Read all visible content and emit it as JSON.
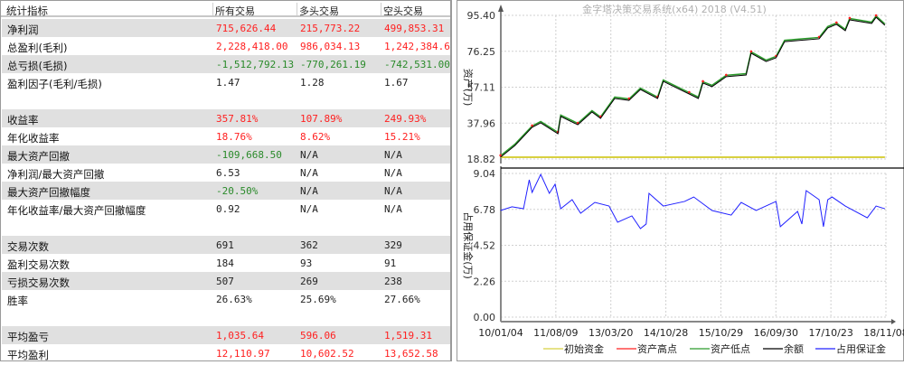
{
  "table": {
    "headers": [
      "统计指标",
      "所有交易",
      "多头交易",
      "空头交易"
    ],
    "rows": [
      {
        "label": "净利润",
        "values": [
          "715,626.44",
          "215,773.22",
          "499,853.31"
        ],
        "color": "red",
        "shade": true
      },
      {
        "label": "总盈利(毛利)",
        "values": [
          "2,228,418.00",
          "986,034.13",
          "1,242,384.63"
        ],
        "color": "red",
        "shade": false
      },
      {
        "label": "总亏损(毛损)",
        "values": [
          "-1,512,792.13",
          "-770,261.19",
          "-742,531.00"
        ],
        "color": "green",
        "shade": true
      },
      {
        "label": "盈利因子(毛利/毛损)",
        "values": [
          "1.47",
          "1.28",
          "1.67"
        ],
        "color": "black",
        "shade": false
      },
      {
        "label": "",
        "values": [
          "",
          "",
          ""
        ],
        "color": "black",
        "shade": false
      },
      {
        "label": "收益率",
        "values": [
          "357.81%",
          "107.89%",
          "249.93%"
        ],
        "color": "red",
        "shade": true
      },
      {
        "label": "年化收益率",
        "values": [
          "18.76%",
          "8.62%",
          "15.21%"
        ],
        "color": "red",
        "shade": false
      },
      {
        "label": "最大资产回撤",
        "values": [
          "-109,668.50",
          "N/A",
          "N/A"
        ],
        "color": "green",
        "shade": true
      },
      {
        "label": "净利润/最大资产回撤",
        "values": [
          "6.53",
          "N/A",
          "N/A"
        ],
        "color": "black",
        "shade": false
      },
      {
        "label": "最大资产回撤幅度",
        "values": [
          "-20.50%",
          "N/A",
          "N/A"
        ],
        "color": "green",
        "shade": true
      },
      {
        "label": "年化收益率/最大资产回撤幅度",
        "values": [
          "0.92",
          "N/A",
          "N/A"
        ],
        "color": "black",
        "shade": false
      },
      {
        "label": "",
        "values": [
          "",
          "",
          ""
        ],
        "color": "black",
        "shade": false
      },
      {
        "label": "交易次数",
        "values": [
          "691",
          "362",
          "329"
        ],
        "color": "black",
        "shade": true
      },
      {
        "label": "盈利交易次数",
        "values": [
          "184",
          "93",
          "91"
        ],
        "color": "black",
        "shade": false
      },
      {
        "label": "亏损交易次数",
        "values": [
          "507",
          "269",
          "238"
        ],
        "color": "black",
        "shade": true
      },
      {
        "label": "胜率",
        "values": [
          "26.63%",
          "25.69%",
          "27.66%"
        ],
        "color": "black",
        "shade": false
      },
      {
        "label": "",
        "values": [
          "",
          "",
          ""
        ],
        "color": "black",
        "shade": false
      },
      {
        "label": "平均盈亏",
        "values": [
          "1,035.64",
          "596.06",
          "1,519.31"
        ],
        "color": "red",
        "shade": true
      },
      {
        "label": "平均盈利",
        "values": [
          "12,110.97",
          "10,602.52",
          "13,652.58"
        ],
        "color": "red",
        "shade": false
      }
    ]
  },
  "colors": {
    "red": "#ff2020",
    "green": "#2a8a2a",
    "black": "#222222"
  },
  "chart_data": [
    {
      "type": "line",
      "title": "金字塔决策交易系统(x64) 2018 (V4.51)",
      "ylabel": "资产(万)",
      "yticks": [
        "95.40",
        "76.25",
        "57.11",
        "37.96",
        "18.82"
      ],
      "ylim": [
        18.82,
        95.4
      ],
      "grid": true,
      "series": [
        {
          "name": "初始资金",
          "color": "#d8d040",
          "x": [
            "2010-01",
            "2018-11"
          ],
          "values": [
            19.8,
            19.8
          ]
        },
        {
          "name": "余额",
          "color": "#000000",
          "x": [
            "2010-01",
            "2010-06",
            "2010-12",
            "2011-03",
            "2011-09",
            "2011-10",
            "2012-04",
            "2012-09",
            "2012-12",
            "2013-05",
            "2013-10",
            "2014-02",
            "2014-08",
            "2014-10",
            "2015-04",
            "2015-06",
            "2015-07",
            "2015-09",
            "2015-12",
            "2016-04",
            "2016-05",
            "2016-08",
            "2016-10",
            "2016-12",
            "2017-08",
            "2017-10",
            "2017-12",
            "2018-02",
            "2018-03",
            "2018-08",
            "2018-09",
            "2018-11"
          ],
          "values": [
            19.8,
            26.0,
            35.7,
            38.1,
            32.3,
            41.5,
            37.1,
            43.9,
            40.5,
            51.1,
            50.1,
            55.9,
            51.1,
            60.2,
            53.5,
            51.1,
            59.3,
            57.4,
            62.7,
            63.6,
            75.2,
            70.8,
            72.8,
            81.4,
            82.9,
            88.7,
            90.6,
            87.2,
            93.0,
            91.1,
            94.4,
            90.1
          ]
        }
      ],
      "markers": [
        {
          "name": "资产高点",
          "color": "#ff2020"
        },
        {
          "name": "资产低点",
          "color": "#2a9a2a"
        }
      ]
    },
    {
      "type": "line",
      "ylabel": "占用保证金(万)",
      "yticks": [
        "9.04",
        "6.78",
        "4.52",
        "2.26",
        "0.00"
      ],
      "ylim": [
        0,
        9.04
      ],
      "grid": true,
      "xticks": [
        "10/01/04",
        "11/08/09",
        "13/03/20",
        "14/10/28",
        "15/10/29",
        "16/09/30",
        "17/10/23",
        "18/11/08"
      ],
      "series": [
        {
          "name": "占用保证金",
          "color": "#2020ff",
          "x": [
            "2010-01",
            "2010-05",
            "2010-09",
            "2010-11",
            "2010-12",
            "2011-03",
            "2011-06",
            "2011-08",
            "2011-10",
            "2012-02",
            "2012-05",
            "2012-10",
            "2013-03",
            "2013-06",
            "2013-11",
            "2014-02",
            "2014-04",
            "2014-05",
            "2014-10",
            "2015-03",
            "2015-05",
            "2015-09",
            "2016-01",
            "2016-03",
            "2016-06",
            "2016-10",
            "2016-11",
            "2017-03",
            "2017-04",
            "2017-05",
            "2017-08",
            "2017-09",
            "2017-10",
            "2017-11",
            "2018-02",
            "2018-07",
            "2018-09",
            "2018-11"
          ],
          "values": [
            6.71,
            6.94,
            6.82,
            8.64,
            7.85,
            8.98,
            7.79,
            8.36,
            6.82,
            7.39,
            6.54,
            7.22,
            6.99,
            5.97,
            6.37,
            5.57,
            5.86,
            7.79,
            6.99,
            7.28,
            7.56,
            6.71,
            6.42,
            7.22,
            6.71,
            7.28,
            5.69,
            6.65,
            5.86,
            7.96,
            7.39,
            5.69,
            7.39,
            7.56,
            6.99,
            6.25,
            6.99,
            6.82
          ]
        }
      ]
    }
  ],
  "legend": [
    {
      "label": "初始资金",
      "color": "#d8d040"
    },
    {
      "label": "资产高点",
      "color": "#ff2020"
    },
    {
      "label": "资产低点",
      "color": "#2a9a2a"
    },
    {
      "label": "余额",
      "color": "#000000"
    },
    {
      "label": "占用保证金",
      "color": "#2020ff"
    }
  ]
}
